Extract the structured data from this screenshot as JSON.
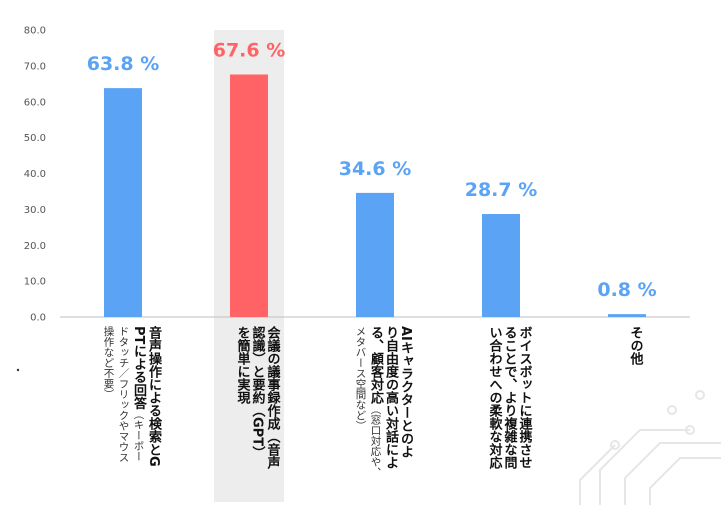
{
  "chart_data": {
    "type": "bar",
    "ylim": [
      0,
      80
    ],
    "yticks": [
      "0.0",
      "10.0",
      "20.0",
      "30.0",
      "40.0",
      "50.0",
      "60.0",
      "70.0",
      "80.0"
    ],
    "grid": false,
    "legend": "none",
    "categories": [
      {
        "main": "音声操作による検索とGPTによる回答",
        "sub": "（キーボードタッチ／フリックやマウス操作など不要）",
        "lines": [
          [
            {
              "t": "音声操作による検索とG",
              "s": false
            }
          ],
          [
            {
              "t": "PTによる回答",
              "s": false
            },
            {
              "t": "（キーボー",
              "s": true
            }
          ],
          [
            {
              "t": "ドタッチ／フリックやマウス",
              "s": true
            }
          ],
          [
            {
              "t": "操作など不要）",
              "s": true
            }
          ]
        ]
      },
      {
        "main": "会議の議事録作成（音声認識）と要約（GPT）を簡単に実現",
        "sub": "",
        "lines": [
          [
            {
              "t": "会議の議事録作成（音声",
              "s": false
            }
          ],
          [
            {
              "t": "認識）と要約（GPT）",
              "s": false
            }
          ],
          [
            {
              "t": "を簡単に実現",
              "s": false
            }
          ]
        ]
      },
      {
        "main": "AIキャラクターとのより自由度の高い対話による、顧客対応",
        "sub": "（窓口対応や、メタバース空間など）",
        "lines": [
          [
            {
              "t": "AIキャラクターとのよ",
              "s": false
            }
          ],
          [
            {
              "t": "り自由度の高い対話によ",
              "s": false
            }
          ],
          [
            {
              "t": "る、顧客対応",
              "s": false
            },
            {
              "t": "（窓口対応や、",
              "s": true
            }
          ],
          [
            {
              "t": "メタバース空間など）",
              "s": true
            }
          ]
        ]
      },
      {
        "main": "ボイスボットに連携させることで、より複雑な問い合わせへの柔軟な対応",
        "sub": "",
        "lines": [
          [
            {
              "t": "ボイスボットに連携させ",
              "s": false
            }
          ],
          [
            {
              "t": "ることで、より複雑な問",
              "s": false
            }
          ],
          [
            {
              "t": "い合わせへの柔軟な対応",
              "s": false
            }
          ]
        ]
      },
      {
        "main": "その他",
        "sub": "",
        "lines": [
          [
            {
              "t": "その他",
              "s": false
            }
          ]
        ]
      }
    ],
    "values": [
      63.8,
      67.6,
      34.6,
      28.7,
      0.8
    ],
    "value_labels": [
      "63.8 %",
      "67.6 %",
      "34.6 %",
      "28.7 %",
      "0.8 %"
    ],
    "highlight_index": 1,
    "colors": {
      "bar": "#5BA3F5",
      "bar_highlight": "#FF6366",
      "label": "#5BA3F5",
      "label_highlight": "#FF6366",
      "highlight_band": "#EDEDED",
      "axis": "#BFBFBF",
      "decor": "#E6E6E6"
    }
  }
}
